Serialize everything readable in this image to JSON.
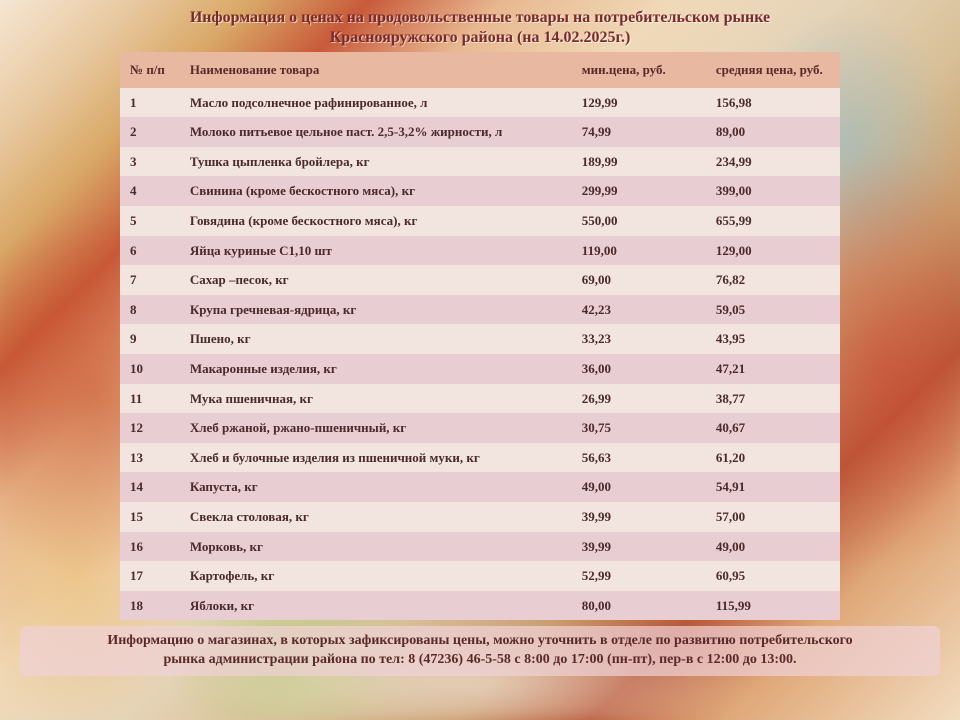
{
  "title_line1": "Информация о ценах на продовольственные товары на потребительском рынке",
  "title_line2": "Краснояружского района (на 14.02.2025г.)",
  "table": {
    "header_row_color": "#e8b8a0",
    "row_even_color": "#f2e5e0",
    "row_odd_color": "#e8cdd2",
    "text_color": "#5a2a2a",
    "columns": [
      {
        "key": "num",
        "label": "№ п/п"
      },
      {
        "key": "name",
        "label": "Наименование товара"
      },
      {
        "key": "min",
        "label": "мин.цена, руб."
      },
      {
        "key": "avg",
        "label": "средняя цена, руб."
      }
    ],
    "rows": [
      {
        "num": "1",
        "name": "Масло подсолнечное рафинированное, л",
        "min": "129,99",
        "avg": "156,98"
      },
      {
        "num": "2",
        "name": "Молоко питьевое цельное паст. 2,5-3,2% жирности, л",
        "min": "74,99",
        "avg": "89,00"
      },
      {
        "num": "3",
        "name": "Тушка цыпленка бройлера, кг",
        "min": "189,99",
        "avg": "234,99"
      },
      {
        "num": "4",
        "name": "Свинина (кроме бескостного мяса), кг",
        "min": "299,99",
        "avg": "399,00"
      },
      {
        "num": "5",
        "name": "Говядина (кроме бескостного мяса), кг",
        "min": "550,00",
        "avg": "655,99"
      },
      {
        "num": "6",
        "name": "Яйца куриные С1,10 шт",
        "min": "119,00",
        "avg": "129,00"
      },
      {
        "num": "7",
        "name": "Сахар –песок, кг",
        "min": "69,00",
        "avg": "76,82"
      },
      {
        "num": "8",
        "name": "Крупа гречневая-ядрица, кг",
        "min": "42,23",
        "avg": "59,05"
      },
      {
        "num": "9",
        "name": "Пшено, кг",
        "min": "33,23",
        "avg": "43,95"
      },
      {
        "num": "10",
        "name": "Макаронные изделия, кг",
        "min": "36,00",
        "avg": "47,21"
      },
      {
        "num": "11",
        "name": "Мука пшеничная, кг",
        "min": "26,99",
        "avg": "38,77"
      },
      {
        "num": "12",
        "name": "Хлеб ржаной, ржано-пшеничный, кг",
        "min": "30,75",
        "avg": "40,67"
      },
      {
        "num": "13",
        "name": "Хлеб и булочные изделия из пшеничной муки, кг",
        "min": "56,63",
        "avg": "61,20"
      },
      {
        "num": "14",
        "name": "Капуста, кг",
        "min": "49,00",
        "avg": "54,91"
      },
      {
        "num": "15",
        "name": "Свекла столовая, кг",
        "min": "39,99",
        "avg": "57,00"
      },
      {
        "num": "16",
        "name": "Морковь, кг",
        "min": "39,99",
        "avg": "49,00"
      },
      {
        "num": "17",
        "name": "Картофель, кг",
        "min": "52,99",
        "avg": "60,95"
      },
      {
        "num": "18",
        "name": "Яблоки, кг",
        "min": "80,00",
        "avg": "115,99"
      }
    ]
  },
  "footer_line1": "Информацию о магазинах, в которых зафиксированы цены, можно уточнить в отделе по развитию потребительского",
  "footer_line2": "рынка администрации района по тел: 8 (47236) 46-5-58 с 8:00 до 17:00 (пн-пт), пер-в с 12:00 до 13:00."
}
